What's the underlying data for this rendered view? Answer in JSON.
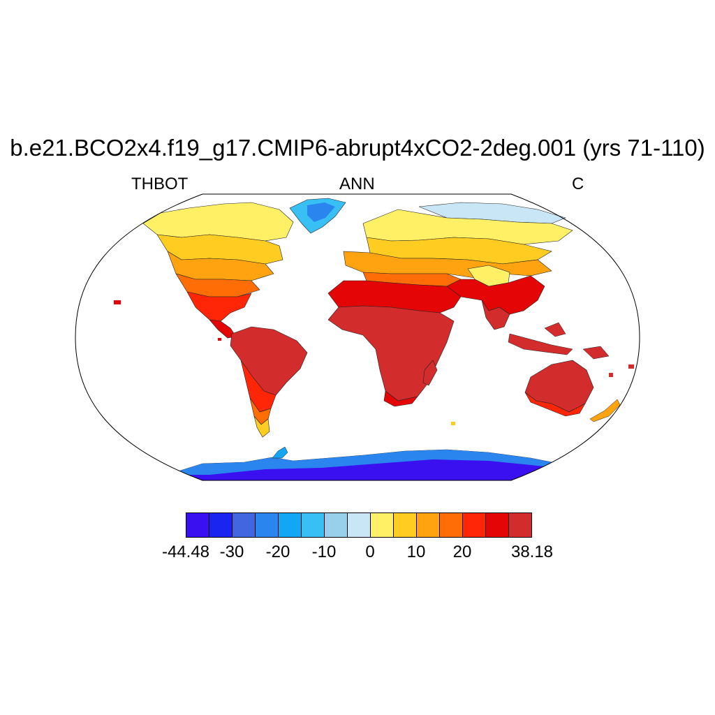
{
  "title": "b.e21.BCO2x4.f19_g17.CMIP6-abrupt4xCO2-2deg.001 (yrs 71-110)",
  "subtitle": {
    "left": "THBOT",
    "center": "ANN",
    "right": "C"
  },
  "projection": "Robinson",
  "colorbar": {
    "colors": [
      "#3a10f0",
      "#1a26f0",
      "#4066e0",
      "#2a86ee",
      "#12a6f4",
      "#38c0f4",
      "#98d0ec",
      "#c8e6f6",
      "#fff066",
      "#ffcc22",
      "#ffa410",
      "#ff6e06",
      "#ff2608",
      "#e40606",
      "#d22c2c"
    ],
    "labels": [
      "-44.48",
      "-30",
      "-20",
      "-10",
      "0",
      "10",
      "20",
      "38.18"
    ],
    "label_positions_index": [
      0,
      1,
      2,
      3,
      4,
      5,
      6,
      8
    ]
  },
  "legend_position": "bottom",
  "map_data": {
    "variable": "THBOT",
    "period": "ANN",
    "units": "C",
    "min": -44.48,
    "max": 38.18
  }
}
